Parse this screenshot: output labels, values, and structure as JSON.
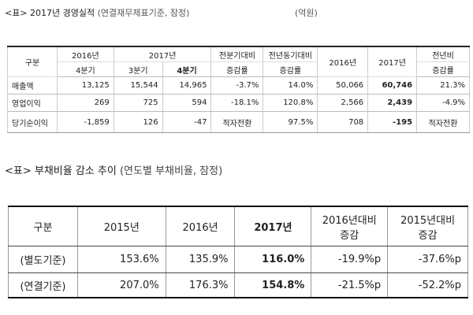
{
  "table1": {
    "title": "<표> 2017년 경영실적",
    "note": "(연결재무제표기준, 잠정)",
    "unit": "(억원)",
    "header": {
      "category": "구분",
      "y2016": "2016년",
      "y2017": "2017년",
      "qoq": "전분기대비",
      "yoy": "전년동기대비",
      "col2016": "2016년",
      "col2017": "2017년",
      "annual": "전년비",
      "q4_2016": "4분기",
      "q3_2017": "3분기",
      "q4_2017": "4분기",
      "change1": "증감률",
      "change2": "증감률",
      "change3": "증감률"
    },
    "rows": [
      {
        "label": "매출액",
        "q4_16": "13,125",
        "q3_17": "15,544",
        "q4_17": "14,965",
        "qoq": "-3.7%",
        "yoy": "14.0%",
        "y16": "50,066",
        "y17": "60,746",
        "annual": "21.3%"
      },
      {
        "label": "영업이익",
        "q4_16": "269",
        "q3_17": "725",
        "q4_17": "594",
        "qoq": "-18.1%",
        "yoy": "120.8%",
        "y16": "2,566",
        "y17": "2,439",
        "annual": "-4.9%"
      },
      {
        "label": "당기순이익",
        "q4_16": "-1,859",
        "q3_17": "126",
        "q4_17": "-47",
        "qoq": "적자전환",
        "yoy": "97.5%",
        "y16": "708",
        "y17": "-195",
        "annual": "적자전환"
      }
    ]
  },
  "table2": {
    "title": "<표> 부채비율 감소 추이",
    "note": "(연도별 부채비율, 잠정)",
    "header": {
      "category": "구분",
      "y2015": "2015년",
      "y2016": "2016년",
      "y2017": "2017년",
      "vs2016": "2016년대비 증감",
      "vs2015": "2015년대비 증감"
    },
    "rows": [
      {
        "label": "(별도기준)",
        "y2015": "153.6%",
        "y2016": "135.9%",
        "y2017": "116.0%",
        "vs2016": "-19.9%p",
        "vs2015": "-37.6%p"
      },
      {
        "label": "(연결기준)",
        "y2015": "207.0%",
        "y2016": "176.3%",
        "y2017": "154.8%",
        "vs2016": "-21.5%p",
        "vs2015": "-52.2%p"
      }
    ]
  }
}
